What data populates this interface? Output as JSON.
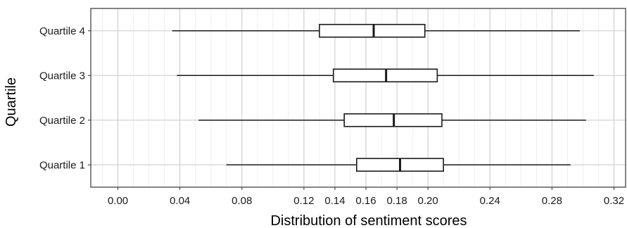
{
  "chart_data": {
    "type": "boxplot",
    "orientation": "horizontal",
    "title": "",
    "xlabel": "Distribution of sentiment scores",
    "ylabel": "Quartile",
    "xlim": [
      -0.0175,
      0.3275
    ],
    "x_ticks": [
      "0.00",
      "0.04",
      "0.08",
      "0.12",
      "0.14",
      "0.16",
      "0.18",
      "0.20",
      "0.24",
      "0.28",
      "0.32"
    ],
    "x_tick_values": [
      0.0,
      0.04,
      0.08,
      0.12,
      0.14,
      0.16,
      0.18,
      0.2,
      0.24,
      0.28,
      0.32
    ],
    "grid": true,
    "categories": [
      "Quartile 4",
      "Quartile 3",
      "Quartile 2",
      "Quartile 1"
    ],
    "boxes": [
      {
        "label": "Quartile 4",
        "min": 0.035,
        "q1": 0.13,
        "median": 0.165,
        "q3": 0.198,
        "max": 0.298
      },
      {
        "label": "Quartile 3",
        "min": 0.038,
        "q1": 0.139,
        "median": 0.173,
        "q3": 0.206,
        "max": 0.307
      },
      {
        "label": "Quartile 2",
        "min": 0.052,
        "q1": 0.146,
        "median": 0.178,
        "q3": 0.209,
        "max": 0.302
      },
      {
        "label": "Quartile 1",
        "min": 0.07,
        "q1": 0.154,
        "median": 0.182,
        "q3": 0.21,
        "max": 0.292
      }
    ]
  }
}
